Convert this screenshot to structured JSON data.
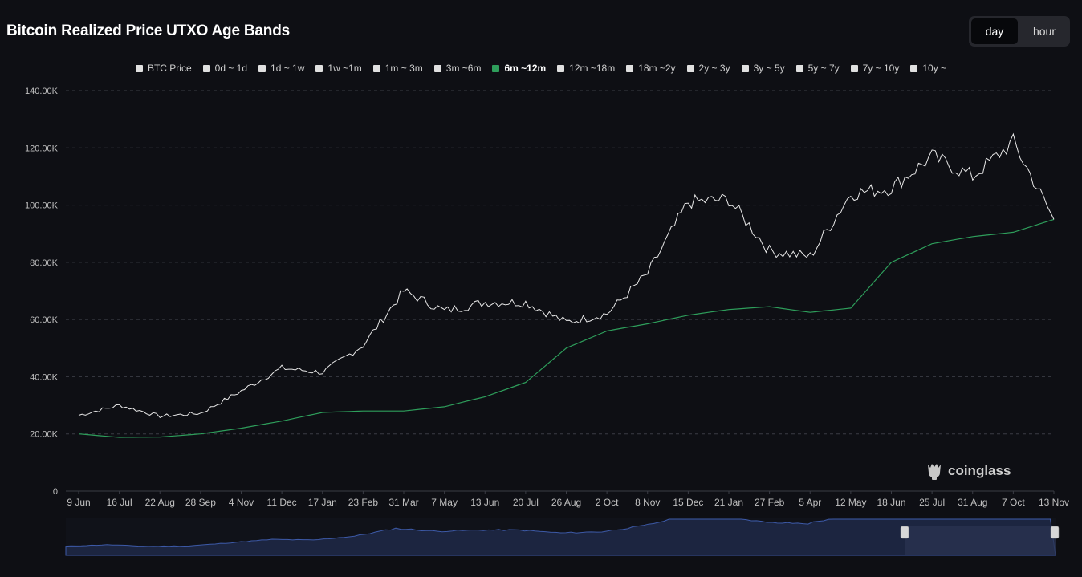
{
  "title": "Bitcoin Realized Price UTXO Age Bands",
  "interval": {
    "options": [
      "day",
      "hour"
    ],
    "selected": "day"
  },
  "legend": [
    {
      "label": "BTC Price",
      "color": "#e0e0e0",
      "active": false
    },
    {
      "label": "0d ~ 1d",
      "color": "#e0e0e0",
      "active": false
    },
    {
      "label": "1d ~ 1w",
      "color": "#e0e0e0",
      "active": false
    },
    {
      "label": "1w ~1m",
      "color": "#e0e0e0",
      "active": false
    },
    {
      "label": "1m ~ 3m",
      "color": "#e0e0e0",
      "active": false
    },
    {
      "label": "3m ~6m",
      "color": "#e0e0e0",
      "active": false
    },
    {
      "label": "6m ~12m",
      "color": "#2e9e5b",
      "active": true
    },
    {
      "label": "12m ~18m",
      "color": "#e0e0e0",
      "active": false
    },
    {
      "label": "18m ~2y",
      "color": "#e0e0e0",
      "active": false
    },
    {
      "label": "2y ~ 3y",
      "color": "#e0e0e0",
      "active": false
    },
    {
      "label": "3y ~ 5y",
      "color": "#e0e0e0",
      "active": false
    },
    {
      "label": "5y ~ 7y",
      "color": "#e0e0e0",
      "active": false
    },
    {
      "label": "7y ~ 10y",
      "color": "#e0e0e0",
      "active": false
    },
    {
      "label": "10y ~",
      "color": "#e0e0e0",
      "active": false
    }
  ],
  "brand": "coinglass",
  "colors": {
    "background": "#0e0f14",
    "price_line": "#e8e8e8",
    "band_line": "#2e9e5b",
    "grid": "#3a3c44",
    "axis_text": "#c0c0c0",
    "navigator_fill": "#1c2540",
    "navigator_line": "#3d5aa8",
    "navigator_window": "#2a3350"
  },
  "chart_data": {
    "type": "line",
    "title": "Bitcoin Realized Price UTXO Age Bands",
    "x_tick_labels": [
      "9 Jun",
      "16 Jul",
      "22 Aug",
      "28 Sep",
      "4 Nov",
      "11 Dec",
      "17 Jan",
      "23 Feb",
      "31 Mar",
      "7 May",
      "13 Jun",
      "20 Jul",
      "26 Aug",
      "2 Oct",
      "8 Nov",
      "15 Dec",
      "21 Jan",
      "27 Feb",
      "5 Apr",
      "12 May",
      "18 Jun",
      "25 Jul",
      "31 Aug",
      "7 Oct",
      "13 Nov"
    ],
    "y_tick_labels": [
      "0",
      "20.00K",
      "40.00K",
      "60.00K",
      "80.00K",
      "100.00K",
      "120.00K",
      "140.00K"
    ],
    "ylim": [
      0,
      140000
    ],
    "grid": true,
    "legend_position": "top-center",
    "series": [
      {
        "name": "BTC Price",
        "x": [
          "9 Jun",
          "16 Jul",
          "22 Aug",
          "28 Sep",
          "4 Nov",
          "11 Dec",
          "17 Jan",
          "23 Feb",
          "31 Mar",
          "7 May",
          "13 Jun",
          "20 Jul",
          "26 Aug",
          "2 Oct",
          "8 Nov",
          "15 Dec",
          "21 Jan",
          "27 Feb",
          "5 Apr",
          "12 May",
          "18 Jun",
          "25 Jul",
          "31 Aug",
          "7 Oct",
          "13 Nov"
        ],
        "values": [
          26500,
          30000,
          26200,
          27200,
          35000,
          43000,
          41500,
          51000,
          70000,
          63000,
          66000,
          66000,
          59000,
          62000,
          76000,
          101000,
          102000,
          84000,
          82000,
          104000,
          106000,
          117000,
          110000,
          122000,
          95000
        ]
      },
      {
        "name": "6m ~12m",
        "x": [
          "9 Jun",
          "16 Jul",
          "22 Aug",
          "28 Sep",
          "4 Nov",
          "11 Dec",
          "17 Jan",
          "23 Feb",
          "31 Mar",
          "7 May",
          "13 Jun",
          "20 Jul",
          "26 Aug",
          "2 Oct",
          "8 Nov",
          "15 Dec",
          "21 Jan",
          "27 Feb",
          "5 Apr",
          "12 May",
          "18 Jun",
          "25 Jul",
          "31 Aug",
          "7 Oct",
          "13 Nov"
        ],
        "values": [
          20000,
          18800,
          18900,
          20000,
          22000,
          24500,
          27500,
          28000,
          28000,
          29500,
          33000,
          38000,
          50000,
          56000,
          58500,
          61500,
          63500,
          64500,
          62500,
          64000,
          80000,
          86500,
          89000,
          90500,
          95000
        ]
      }
    ]
  }
}
